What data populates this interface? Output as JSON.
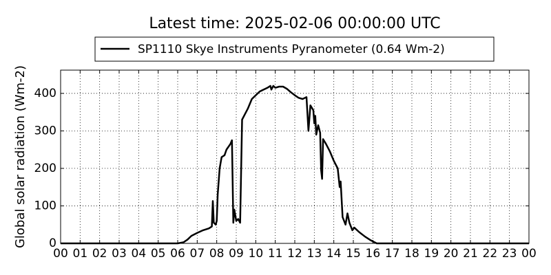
{
  "chart_data": {
    "type": "line",
    "title": "Latest time: 2025-02-06 00:00:00 UTC",
    "ylabel": "Global solar radiation (Wm-2)",
    "x": [
      0,
      6.0,
      6.3,
      6.5,
      6.7,
      7.0,
      7.3,
      7.6,
      7.75,
      7.8,
      7.85,
      7.95,
      8.0,
      8.05,
      8.15,
      8.25,
      8.4,
      8.5,
      8.7,
      8.78,
      8.85,
      8.9,
      9.0,
      9.1,
      9.2,
      9.3,
      9.45,
      9.6,
      9.8,
      10.0,
      10.2,
      10.4,
      10.6,
      10.75,
      10.8,
      10.9,
      11.0,
      11.2,
      11.4,
      11.6,
      11.8,
      12.0,
      12.2,
      12.4,
      12.6,
      12.7,
      12.8,
      12.95,
      13.0,
      13.05,
      13.1,
      13.2,
      13.3,
      13.35,
      13.4,
      13.45,
      13.6,
      13.8,
      14.0,
      14.2,
      14.3,
      14.35,
      14.45,
      14.6,
      14.7,
      14.8,
      14.95,
      15.05,
      15.3,
      15.6,
      15.9,
      16.2,
      24
    ],
    "series": [
      {
        "name": "SP1110 Skye Instruments Pyranometer (0.64 Wm-2)",
        "color": "#000000",
        "values": [
          0,
          0,
          3,
          10,
          20,
          28,
          35,
          40,
          45,
          113,
          55,
          50,
          60,
          130,
          200,
          230,
          235,
          250,
          265,
          275,
          55,
          90,
          60,
          65,
          55,
          330,
          345,
          360,
          385,
          395,
          405,
          410,
          415,
          420,
          410,
          420,
          415,
          418,
          418,
          412,
          403,
          395,
          388,
          385,
          390,
          300,
          368,
          355,
          320,
          340,
          290,
          315,
          295,
          195,
          172,
          278,
          265,
          245,
          220,
          200,
          150,
          165,
          70,
          50,
          80,
          55,
          35,
          42,
          30,
          18,
          8,
          0,
          0
        ]
      }
    ],
    "xlim": [
      0,
      24
    ],
    "xticks": [
      {
        "value": 0,
        "label": "00"
      },
      {
        "value": 1,
        "label": "01"
      },
      {
        "value": 2,
        "label": "02"
      },
      {
        "value": 3,
        "label": "03"
      },
      {
        "value": 4,
        "label": "04"
      },
      {
        "value": 5,
        "label": "05"
      },
      {
        "value": 6,
        "label": "06"
      },
      {
        "value": 7,
        "label": "07"
      },
      {
        "value": 8,
        "label": "08"
      },
      {
        "value": 9,
        "label": "09"
      },
      {
        "value": 10,
        "label": "10"
      },
      {
        "value": 11,
        "label": "11"
      },
      {
        "value": 12,
        "label": "12"
      },
      {
        "value": 13,
        "label": "13"
      },
      {
        "value": 14,
        "label": "14"
      },
      {
        "value": 15,
        "label": "15"
      },
      {
        "value": 16,
        "label": "16"
      },
      {
        "value": 17,
        "label": "17"
      },
      {
        "value": 18,
        "label": "18"
      },
      {
        "value": 19,
        "label": "19"
      },
      {
        "value": 20,
        "label": "20"
      },
      {
        "value": 21,
        "label": "21"
      },
      {
        "value": 22,
        "label": "22"
      },
      {
        "value": 23,
        "label": "23"
      },
      {
        "value": 24,
        "label": "00"
      }
    ],
    "ylim": [
      0,
      462
    ],
    "yticks": [
      0,
      100,
      200,
      300,
      400
    ],
    "grid": true,
    "legend": "top"
  }
}
